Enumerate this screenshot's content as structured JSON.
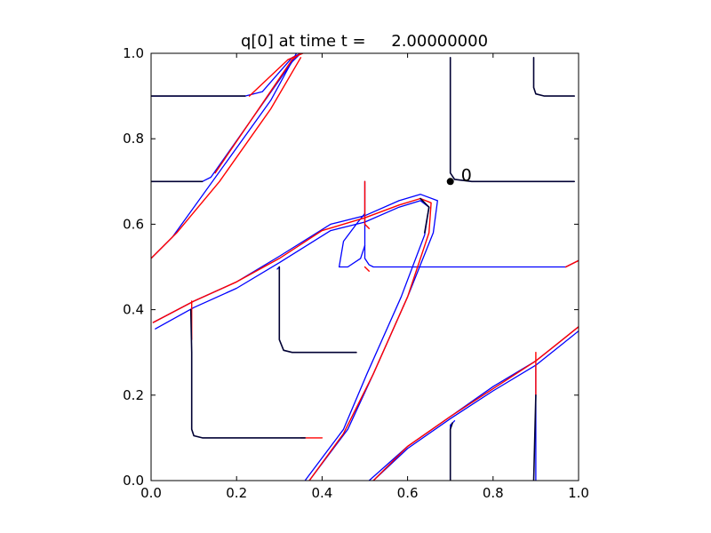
{
  "chart_data": {
    "type": "line",
    "title": "q[0] at time t =     2.00000000",
    "xlabel": "",
    "ylabel": "",
    "xlim": [
      0,
      1
    ],
    "ylim": [
      0,
      1
    ],
    "x_ticks": [
      "0.0",
      "0.2",
      "0.4",
      "0.6",
      "0.8",
      "1.0"
    ],
    "y_ticks": [
      "0.0",
      "0.2",
      "0.4",
      "0.6",
      "0.8",
      "1.0"
    ],
    "grid": false,
    "legend": "none",
    "annotation": {
      "text": "0",
      "x": 0.7,
      "y": 0.7
    },
    "colors": {
      "series_a": "#0000ff",
      "series_b": "#ff0000",
      "series_c": "#000033",
      "marker": "#000000"
    },
    "series": [
      {
        "color": "#0000ff",
        "width": 1.3,
        "lines": [
          [
            [
              0.0,
              0.9
            ],
            [
              0.22,
              0.9
            ],
            [
              0.26,
              0.91
            ],
            [
              0.33,
              0.99
            ],
            [
              0.35,
              1.0
            ]
          ],
          [
            [
              0.0,
              0.7
            ],
            [
              0.12,
              0.7
            ],
            [
              0.14,
              0.71
            ],
            [
              0.33,
              0.98
            ],
            [
              0.35,
              1.0
            ]
          ],
          [
            [
              0.0,
              0.52
            ],
            [
              0.05,
              0.57
            ],
            [
              0.28,
              0.89
            ],
            [
              0.34,
              1.0
            ]
          ],
          [
            [
              0.005,
              0.37
            ],
            [
              0.1,
              0.42
            ],
            [
              0.2,
              0.465
            ],
            [
              0.3,
              0.525
            ],
            [
              0.42,
              0.6
            ],
            [
              0.5,
              0.62
            ],
            [
              0.58,
              0.655
            ],
            [
              0.63,
              0.67
            ],
            [
              0.67,
              0.655
            ],
            [
              0.66,
              0.58
            ],
            [
              0.6,
              0.43
            ],
            [
              0.52,
              0.25
            ],
            [
              0.46,
              0.12
            ],
            [
              0.37,
              0.0
            ]
          ],
          [
            [
              0.01,
              0.355
            ],
            [
              0.1,
              0.405
            ],
            [
              0.2,
              0.45
            ],
            [
              0.3,
              0.51
            ],
            [
              0.42,
              0.585
            ],
            [
              0.5,
              0.605
            ],
            [
              0.58,
              0.64
            ],
            [
              0.63,
              0.655
            ],
            [
              0.65,
              0.64
            ],
            [
              0.64,
              0.575
            ],
            [
              0.585,
              0.43
            ],
            [
              0.505,
              0.25
            ],
            [
              0.45,
              0.12
            ],
            [
              0.36,
              0.0
            ]
          ],
          [
            [
              0.5,
              0.625
            ],
            [
              0.48,
              0.6
            ],
            [
              0.45,
              0.56
            ],
            [
              0.44,
              0.5
            ],
            [
              0.46,
              0.5
            ],
            [
              0.49,
              0.52
            ],
            [
              0.5,
              0.55
            ]
          ],
          [
            [
              0.5,
              0.7
            ],
            [
              0.5,
              0.52
            ],
            [
              0.51,
              0.505
            ],
            [
              0.52,
              0.5
            ],
            [
              0.97,
              0.5
            ],
            [
              0.99,
              0.51
            ],
            [
              1.0,
              0.515
            ]
          ],
          [
            [
              0.295,
              0.495
            ],
            [
              0.3,
              0.5
            ]
          ],
          [
            [
              0.51,
              0.0
            ],
            [
              0.6,
              0.08
            ],
            [
              0.7,
              0.15
            ],
            [
              0.8,
              0.22
            ],
            [
              0.9,
              0.28
            ],
            [
              0.95,
              0.32
            ],
            [
              1.0,
              0.36
            ]
          ],
          [
            [
              0.52,
              0.0
            ],
            [
              0.6,
              0.075
            ],
            [
              0.7,
              0.145
            ],
            [
              0.8,
              0.21
            ],
            [
              0.9,
              0.27
            ],
            [
              0.95,
              0.31
            ],
            [
              1.0,
              0.35
            ]
          ],
          [
            [
              0.9,
              0.0
            ],
            [
              0.9,
              0.27
            ]
          ],
          [
            [
              0.7,
              0.0
            ],
            [
              0.7,
              0.13
            ],
            [
              0.71,
              0.14
            ]
          ]
        ]
      },
      {
        "color": "#ff0000",
        "width": 1.4,
        "lines": [
          [
            [
              0.0,
              0.52
            ],
            [
              0.06,
              0.58
            ],
            [
              0.16,
              0.7
            ],
            [
              0.28,
              0.87
            ],
            [
              0.35,
              0.99
            ]
          ],
          [
            [
              0.23,
              0.9
            ],
            [
              0.32,
              0.985
            ],
            [
              0.355,
              1.0
            ]
          ],
          [
            [
              0.15,
              0.72
            ],
            [
              0.33,
              0.985
            ],
            [
              0.35,
              1.0
            ]
          ],
          [
            [
              0.005,
              0.37
            ],
            [
              0.1,
              0.42
            ],
            [
              0.2,
              0.465
            ],
            [
              0.3,
              0.52
            ],
            [
              0.4,
              0.585
            ],
            [
              0.5,
              0.615
            ],
            [
              0.58,
              0.645
            ],
            [
              0.63,
              0.66
            ],
            [
              0.655,
              0.65
            ],
            [
              0.65,
              0.58
            ],
            [
              0.6,
              0.43
            ],
            [
              0.52,
              0.25
            ],
            [
              0.45,
              0.11
            ],
            [
              0.37,
              0.0
            ]
          ],
          [
            [
              0.095,
              0.42
            ],
            [
              0.095,
              0.33
            ]
          ],
          [
            [
              0.3,
              0.5
            ],
            [
              0.3,
              0.44
            ]
          ],
          [
            [
              0.5,
              0.7
            ],
            [
              0.5,
              0.6
            ],
            [
              0.51,
              0.59
            ]
          ],
          [
            [
              0.5,
              0.5
            ],
            [
              0.51,
              0.49
            ]
          ],
          [
            [
              0.35,
              0.1
            ],
            [
              0.4,
              0.1
            ]
          ],
          [
            [
              0.42,
              0.3
            ],
            [
              0.48,
              0.3
            ]
          ],
          [
            [
              0.52,
              0.0
            ],
            [
              0.6,
              0.08
            ],
            [
              0.7,
              0.15
            ],
            [
              0.8,
              0.215
            ],
            [
              0.9,
              0.28
            ],
            [
              0.95,
              0.32
            ],
            [
              1.0,
              0.36
            ]
          ],
          [
            [
              0.9,
              0.3
            ],
            [
              0.9,
              0.2
            ]
          ],
          [
            [
              0.97,
              0.5
            ],
            [
              1.0,
              0.515
            ]
          ]
        ]
      },
      {
        "color": "#000033",
        "width": 1.6,
        "lines": [
          [
            [
              0.0,
              0.9
            ],
            [
              0.22,
              0.9
            ]
          ],
          [
            [
              0.0,
              0.7
            ],
            [
              0.12,
              0.7
            ]
          ],
          [
            [
              0.093,
              0.4
            ],
            [
              0.095,
              0.3
            ],
            [
              0.095,
              0.12
            ],
            [
              0.1,
              0.105
            ],
            [
              0.12,
              0.1
            ],
            [
              0.36,
              0.1
            ]
          ],
          [
            [
              0.3,
              0.5
            ],
            [
              0.3,
              0.33
            ],
            [
              0.31,
              0.305
            ],
            [
              0.33,
              0.3
            ],
            [
              0.48,
              0.3
            ]
          ],
          [
            [
              0.7,
              0.99
            ],
            [
              0.7,
              0.72
            ],
            [
              0.71,
              0.705
            ],
            [
              0.75,
              0.7
            ],
            [
              0.99,
              0.7
            ]
          ],
          [
            [
              0.895,
              0.99
            ],
            [
              0.895,
              0.92
            ],
            [
              0.9,
              0.905
            ],
            [
              0.92,
              0.9
            ],
            [
              0.99,
              0.9
            ]
          ],
          [
            [
              0.7,
              0.0
            ],
            [
              0.7,
              0.12
            ],
            [
              0.705,
              0.135
            ]
          ],
          [
            [
              0.895,
              0.0
            ],
            [
              0.9,
              0.2
            ]
          ],
          [
            [
              0.63,
              0.66
            ],
            [
              0.65,
              0.64
            ],
            [
              0.64,
              0.58
            ]
          ]
        ]
      }
    ]
  }
}
